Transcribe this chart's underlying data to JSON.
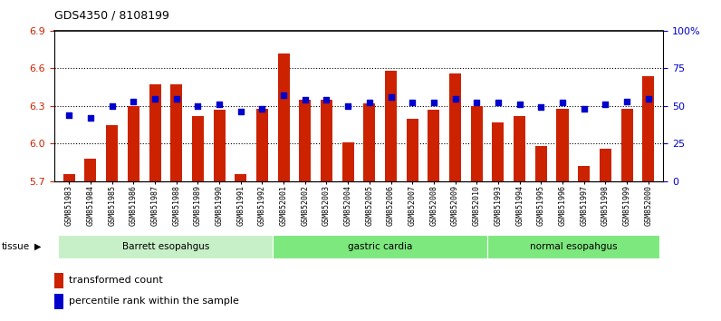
{
  "title": "GDS4350 / 8108199",
  "samples": [
    "GSM851983",
    "GSM851984",
    "GSM851985",
    "GSM851986",
    "GSM851987",
    "GSM851988",
    "GSM851989",
    "GSM851990",
    "GSM851991",
    "GSM851992",
    "GSM852001",
    "GSM852002",
    "GSM852003",
    "GSM852004",
    "GSM852005",
    "GSM852006",
    "GSM852007",
    "GSM852008",
    "GSM852009",
    "GSM852010",
    "GSM851993",
    "GSM851994",
    "GSM851995",
    "GSM851996",
    "GSM851997",
    "GSM851998",
    "GSM851999",
    "GSM852000"
  ],
  "red_values": [
    5.76,
    5.88,
    6.15,
    6.3,
    6.47,
    6.47,
    6.22,
    6.27,
    5.76,
    6.28,
    6.72,
    6.35,
    6.35,
    6.01,
    6.32,
    6.58,
    6.2,
    6.27,
    6.56,
    6.3,
    6.17,
    6.22,
    5.98,
    6.28,
    5.82,
    5.96,
    6.28,
    6.54
  ],
  "blue_values": [
    44,
    42,
    50,
    53,
    55,
    55,
    50,
    51,
    46,
    48,
    57,
    54,
    54,
    50,
    52,
    56,
    52,
    52,
    55,
    52,
    52,
    51,
    49,
    52,
    48,
    51,
    53,
    55
  ],
  "groups": [
    {
      "label": "Barrett esopahgus",
      "start": 0,
      "end": 10,
      "color": "#c8f0c8"
    },
    {
      "label": "gastric cardia",
      "start": 10,
      "end": 20,
      "color": "#7de87d"
    },
    {
      "label": "normal esopahgus",
      "start": 20,
      "end": 28,
      "color": "#7de87d"
    }
  ],
  "ylim_left": [
    5.7,
    6.9
  ],
  "ylim_right": [
    0,
    100
  ],
  "yticks_left": [
    5.7,
    6.0,
    6.3,
    6.6,
    6.9
  ],
  "yticks_right": [
    0,
    25,
    50,
    75,
    100
  ],
  "ytick_labels_right": [
    "0",
    "25",
    "50",
    "75",
    "100%"
  ],
  "hgrid_lines": [
    6.0,
    6.3,
    6.6
  ],
  "bar_color": "#cc2200",
  "dot_color": "#0000cc",
  "legend_items": [
    "transformed count",
    "percentile rank within the sample"
  ]
}
